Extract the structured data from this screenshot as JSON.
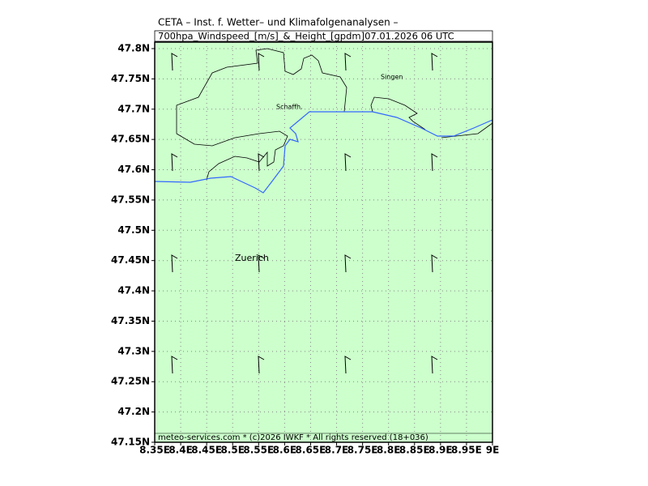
{
  "header": {
    "title": "CETA – Inst. f. Wetter– und Klimafolgenanalysen –",
    "subtitle": "700hpa_Windspeed_[m/s]_&_Height_[gpdm]07.01.2026 06 UTC"
  },
  "map": {
    "lat_labels": [
      "47.8N",
      "47.75N",
      "47.7N",
      "47.65N",
      "47.6N",
      "47.55N",
      "47.5N",
      "47.45N",
      "47.4N",
      "47.35N",
      "47.3N",
      "47.25N",
      "47.2N",
      "47.15N"
    ],
    "lon_labels": [
      "8.35E",
      "8.4E",
      "8.45E",
      "8.5E",
      "8.55E",
      "8.6E",
      "8.65E",
      "8.7E",
      "8.75E",
      "8.8E",
      "8.85E",
      "8.9E",
      "8.95E",
      "9E"
    ],
    "places": [
      "Singen",
      "Schaffh.",
      "Zuerich"
    ]
  },
  "footer": "meteo-services.com * (c)2026 IWKF * All rights reserved (18+036)"
}
